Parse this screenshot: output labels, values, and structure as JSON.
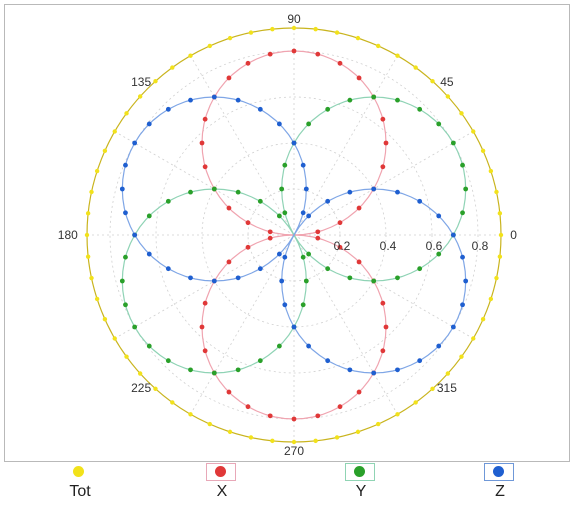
{
  "chart_data": {
    "type": "polar-scatter",
    "title": "",
    "angle_ticks": [
      "0",
      "45",
      "90",
      "135",
      "180",
      "225",
      "270",
      "315"
    ],
    "radial_ticks": [
      "0.2",
      "0.4",
      "0.6",
      "0.8"
    ],
    "r_max": 0.9,
    "grid": true,
    "legend_position": "bottom",
    "series": [
      {
        "name": "Tot",
        "color": "#f2e21a",
        "line_color": "#c9b41e",
        "petal_angle_deg": null,
        "radius": 0.9,
        "marker_step_deg": 6
      },
      {
        "name": "X",
        "color": "#e03838",
        "line_color": "#f0a4b0",
        "petal_angle_deg": 90,
        "diameter": 0.8,
        "marker_step_deg": 15
      },
      {
        "name": "Y",
        "color": "#2aa02a",
        "line_color": "#8fd3b5",
        "petal_angle_deg": 30,
        "diameter": 0.8,
        "marker_step_deg": 15
      },
      {
        "name": "Z",
        "color": "#1f5fd0",
        "line_color": "#7fa6e6",
        "petal_angle_deg": -30,
        "diameter": 0.8,
        "marker_step_deg": 15
      }
    ]
  },
  "legend": {
    "items": [
      {
        "label": "Tot",
        "color": "#f2e21a",
        "boxed": false
      },
      {
        "label": "X",
        "color": "#e03838",
        "boxed": true,
        "box_color": "#e8a8b8"
      },
      {
        "label": "Y",
        "color": "#2aa02a",
        "boxed": true,
        "box_color": "#90d4b4"
      },
      {
        "label": "Z",
        "color": "#1f5fd0",
        "boxed": true,
        "box_color": "#6f98d8"
      }
    ]
  }
}
